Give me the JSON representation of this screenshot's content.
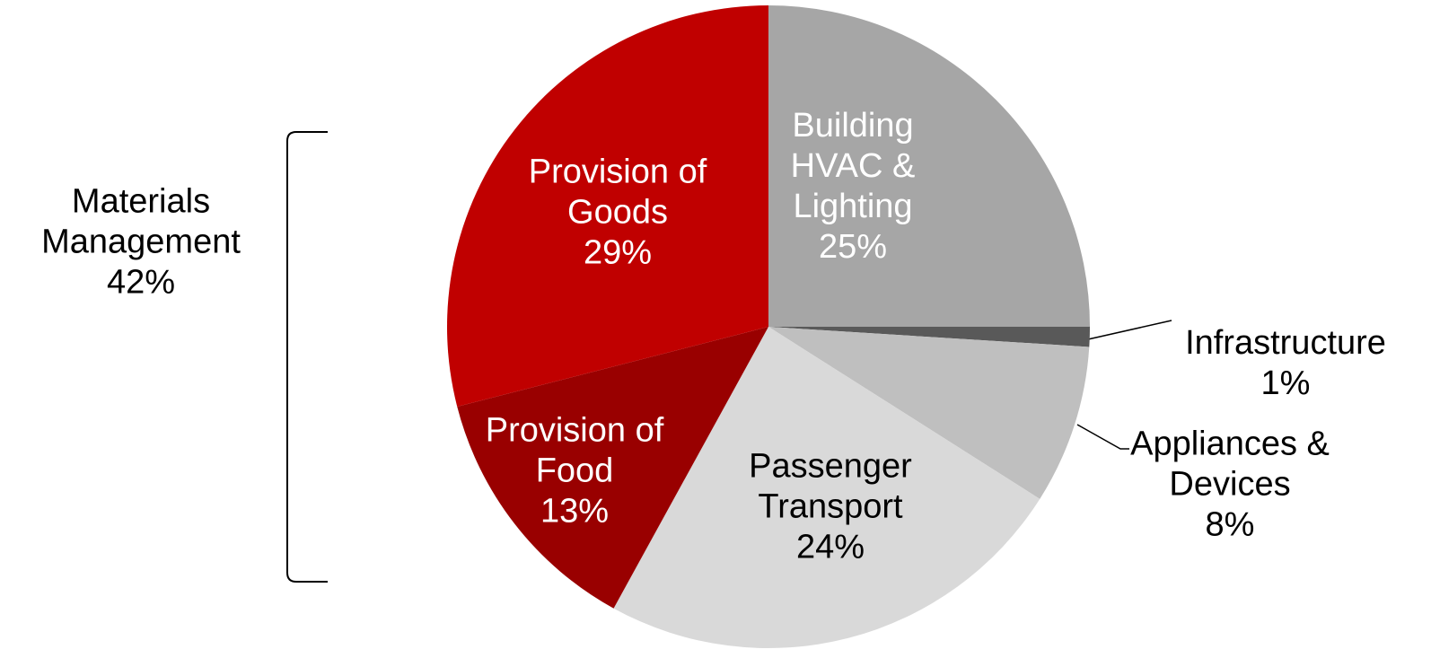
{
  "chart_data": {
    "type": "pie",
    "categories": [
      "Building HVAC & Lighting",
      "Infrastructure",
      "Appliances & Devices",
      "Passenger Transport",
      "Provision of Food",
      "Provision of Goods"
    ],
    "values": [
      25,
      1,
      8,
      24,
      13,
      29
    ],
    "value_labels": [
      "25%",
      "1%",
      "8%",
      "24%",
      "13%",
      "29%"
    ],
    "colors": [
      "#a6a6a6",
      "#595959",
      "#bfbfbf",
      "#d9d9d9",
      "#990000",
      "#c00000"
    ],
    "annotations": [
      {
        "text": "Materials Management",
        "label": "42%"
      }
    ]
  }
}
